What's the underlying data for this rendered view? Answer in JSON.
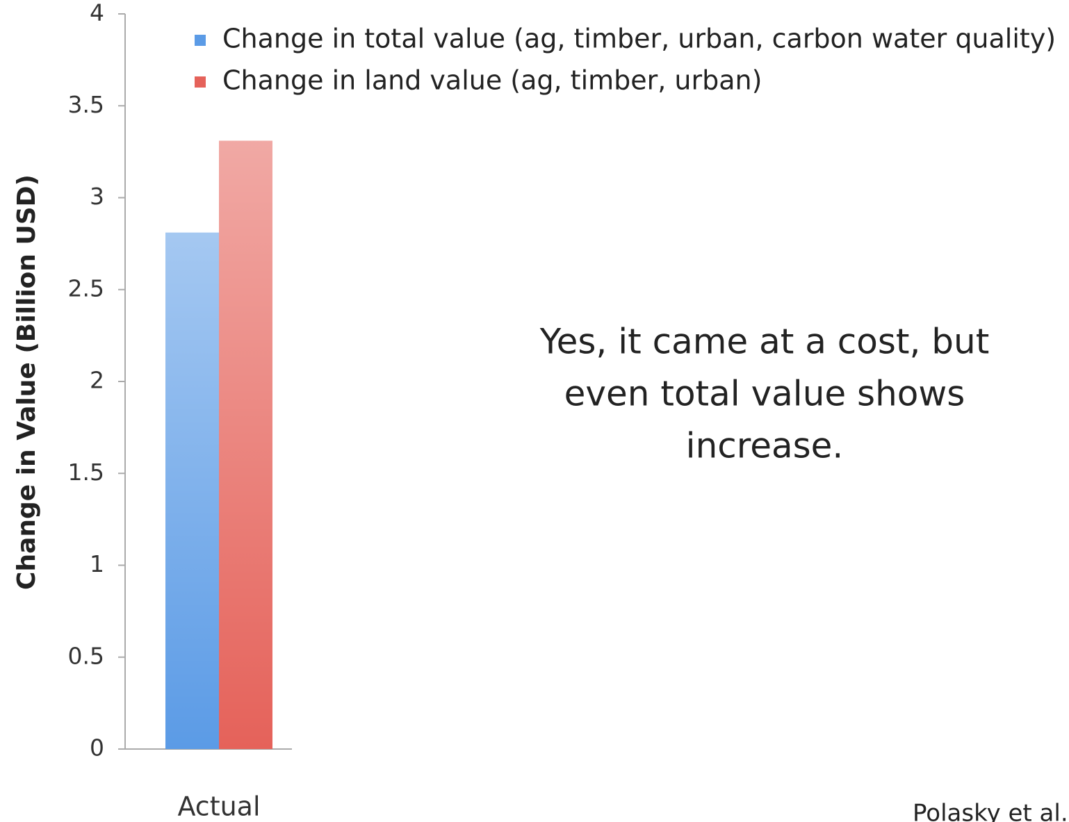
{
  "chart_data": {
    "type": "bar",
    "y_label": "Change in Value (Billion USD)",
    "categories": [
      "Actual"
    ],
    "series": [
      {
        "name": "Change in total value (ag, timber, urban, carbon water quality)",
        "color": "#5b9be6",
        "values": [
          2.81
        ]
      },
      {
        "name": "Change in land value (ag, timber, urban)",
        "color": "#e5625a",
        "values": [
          3.31
        ]
      }
    ],
    "ylim": [
      0,
      4
    ],
    "yticks": [
      0,
      0.5,
      1,
      1.5,
      2,
      2.5,
      3,
      3.5,
      4
    ],
    "annotation": [
      "Yes, it came at a cost, but",
      "even total value shows",
      "increase."
    ],
    "source": "Polasky et al."
  }
}
